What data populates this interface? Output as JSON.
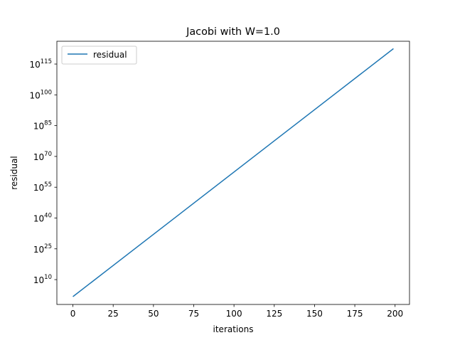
{
  "chart_data": {
    "type": "line",
    "title": "Jacobi with W=1.0",
    "xlabel": "iterations",
    "ylabel": "residual",
    "x_ticks": [
      0,
      25,
      50,
      75,
      100,
      125,
      150,
      175,
      200
    ],
    "y_scale": "log",
    "y_ticks": [
      {
        "base": "10",
        "exp": "10",
        "value_log10": 10
      },
      {
        "base": "10",
        "exp": "25",
        "value_log10": 25
      },
      {
        "base": "10",
        "exp": "40",
        "value_log10": 40
      },
      {
        "base": "10",
        "exp": "55",
        "value_log10": 55
      },
      {
        "base": "10",
        "exp": "70",
        "value_log10": 70
      },
      {
        "base": "10",
        "exp": "85",
        "value_log10": 85
      },
      {
        "base": "10",
        "exp": "100",
        "value_log10": 100
      },
      {
        "base": "10",
        "exp": "115",
        "value_log10": 115
      }
    ],
    "xlim": [
      -9.95,
      208.95
    ],
    "ylim_log10": [
      -2.1,
      126.1
    ],
    "series": [
      {
        "name": "residual",
        "color": "#1f77b4",
        "x": [
          0,
          199
        ],
        "y_log10": [
          1.7,
          122.5
        ]
      }
    ],
    "legend": {
      "position": "upper-left",
      "entries": [
        "residual"
      ]
    },
    "grid": false
  }
}
